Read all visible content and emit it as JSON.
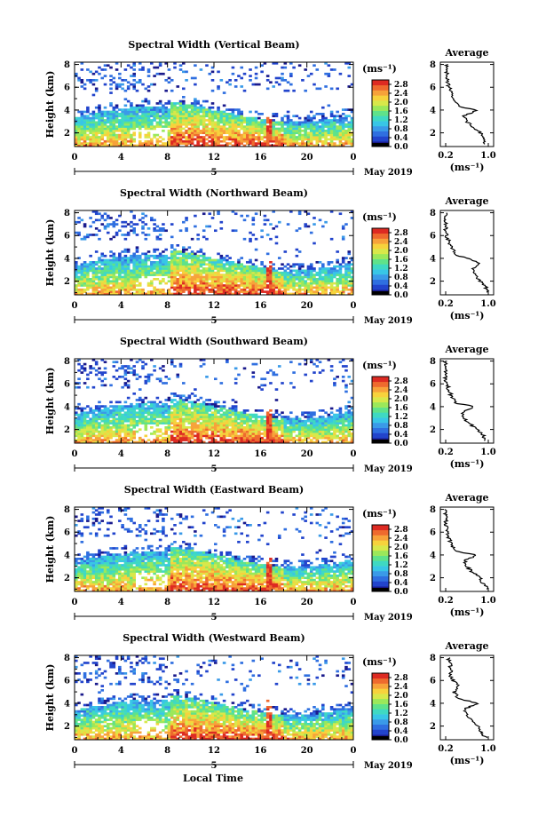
{
  "chart_data": [
    {
      "type": "heatmap",
      "title": "Spectral Width (Vertical Beam)",
      "ylabel": "Height (km)",
      "yticks": [
        "2",
        "4",
        "6",
        "8"
      ],
      "ylim": [
        0.8,
        8.2
      ],
      "xticks": [
        "0",
        "4",
        "8",
        "12",
        "16",
        "20",
        "0"
      ],
      "xlim": [
        0,
        24
      ],
      "date_tick": "5",
      "date_label": "May 2019",
      "colorbar_unit": "(ms⁻¹)",
      "colorbar_ticks": [
        "0.0",
        "0.4",
        "0.8",
        "1.2",
        "1.6",
        "2.0",
        "2.4",
        "2.8"
      ],
      "colorbar_range": [
        0.0,
        3.0
      ],
      "profile": {
        "title": "Average",
        "xlabel": "(ms⁻¹)",
        "xticks": [
          "0.2",
          "1.0"
        ],
        "xlim": [
          0.1,
          1.1
        ],
        "yticks": [
          "2",
          "4",
          "6",
          "8"
        ],
        "ylim": [
          0.8,
          8.2
        ],
        "points": [
          [
            0.95,
            1.0
          ],
          [
            0.9,
            1.5
          ],
          [
            0.85,
            2.0
          ],
          [
            0.72,
            2.5
          ],
          [
            0.6,
            3.0
          ],
          [
            0.55,
            3.5
          ],
          [
            0.8,
            4.0
          ],
          [
            0.45,
            4.3
          ],
          [
            0.35,
            5.0
          ],
          [
            0.3,
            5.6
          ],
          [
            0.25,
            6.2
          ],
          [
            0.22,
            7.0
          ],
          [
            0.22,
            8.0
          ]
        ]
      }
    },
    {
      "type": "heatmap",
      "title": "Spectral Width (Northward Beam)",
      "ylabel": "Height (km)",
      "yticks": [
        "2",
        "4",
        "6",
        "8"
      ],
      "ylim": [
        0.8,
        8.2
      ],
      "xticks": [
        "0",
        "4",
        "8",
        "12",
        "16",
        "20",
        "0"
      ],
      "xlim": [
        0,
        24
      ],
      "date_tick": "5",
      "date_label": "May 2019",
      "colorbar_unit": "(ms⁻¹)",
      "colorbar_ticks": [
        "0.0",
        "0.4",
        "0.8",
        "1.2",
        "1.6",
        "2.0",
        "2.4",
        "2.8"
      ],
      "colorbar_range": [
        0.0,
        3.0
      ],
      "profile": {
        "title": "Average",
        "xlabel": "(ms⁻¹)",
        "xticks": [
          "0.2",
          "1.0"
        ],
        "xlim": [
          0.1,
          1.1
        ],
        "yticks": [
          "2",
          "4",
          "6",
          "8"
        ],
        "ylim": [
          0.8,
          8.2
        ],
        "points": [
          [
            1.0,
            1.0
          ],
          [
            0.95,
            1.5
          ],
          [
            0.85,
            2.0
          ],
          [
            0.75,
            2.5
          ],
          [
            0.7,
            3.0
          ],
          [
            0.82,
            3.6
          ],
          [
            0.6,
            4.0
          ],
          [
            0.4,
            4.3
          ],
          [
            0.3,
            5.0
          ],
          [
            0.25,
            5.6
          ],
          [
            0.2,
            6.2
          ],
          [
            0.2,
            7.0
          ],
          [
            0.22,
            8.0
          ]
        ]
      }
    },
    {
      "type": "heatmap",
      "title": "Spectral Width (Southward Beam)",
      "ylabel": "Height (km)",
      "yticks": [
        "2",
        "4",
        "6",
        "8"
      ],
      "ylim": [
        0.8,
        8.2
      ],
      "xticks": [
        "0",
        "4",
        "8",
        "12",
        "16",
        "20",
        "0"
      ],
      "xlim": [
        0,
        24
      ],
      "date_tick": "5",
      "date_label": "May 2019",
      "colorbar_unit": "(ms⁻¹)",
      "colorbar_ticks": [
        "0.0",
        "0.4",
        "0.8",
        "1.2",
        "1.6",
        "2.0",
        "2.4",
        "2.8"
      ],
      "colorbar_range": [
        0.0,
        3.0
      ],
      "profile": {
        "title": "Average",
        "xlabel": "(ms⁻¹)",
        "xticks": [
          "0.2",
          "1.0"
        ],
        "xlim": [
          0.1,
          1.1
        ],
        "yticks": [
          "2",
          "4",
          "6",
          "8"
        ],
        "ylim": [
          0.8,
          8.2
        ],
        "points": [
          [
            0.95,
            1.0
          ],
          [
            0.9,
            1.5
          ],
          [
            0.8,
            2.0
          ],
          [
            0.65,
            2.5
          ],
          [
            0.55,
            3.0
          ],
          [
            0.5,
            3.5
          ],
          [
            0.75,
            4.0
          ],
          [
            0.4,
            4.3
          ],
          [
            0.3,
            5.0
          ],
          [
            0.25,
            5.6
          ],
          [
            0.2,
            6.2
          ],
          [
            0.2,
            7.0
          ],
          [
            0.2,
            8.0
          ]
        ]
      }
    },
    {
      "type": "heatmap",
      "title": "Spectral Width (Eastward Beam)",
      "ylabel": "Height (km)",
      "yticks": [
        "2",
        "4",
        "6",
        "8"
      ],
      "ylim": [
        0.8,
        8.2
      ],
      "xticks": [
        "0",
        "4",
        "8",
        "12",
        "16",
        "20",
        "0"
      ],
      "xlim": [
        0,
        24
      ],
      "date_tick": "5",
      "date_label": "May 2019",
      "colorbar_unit": "(ms⁻¹)",
      "colorbar_ticks": [
        "0.0",
        "0.4",
        "0.8",
        "1.2",
        "1.6",
        "2.0",
        "2.4",
        "2.8"
      ],
      "colorbar_range": [
        0.0,
        3.0
      ],
      "profile": {
        "title": "Average",
        "xlabel": "(ms⁻¹)",
        "xticks": [
          "0.2",
          "1.0"
        ],
        "xlim": [
          0.1,
          1.1
        ],
        "yticks": [
          "2",
          "4",
          "6",
          "8"
        ],
        "ylim": [
          0.8,
          8.2
        ],
        "points": [
          [
            1.0,
            1.0
          ],
          [
            0.9,
            1.5
          ],
          [
            0.85,
            2.0
          ],
          [
            0.7,
            2.5
          ],
          [
            0.6,
            3.0
          ],
          [
            0.55,
            3.5
          ],
          [
            0.8,
            4.0
          ],
          [
            0.4,
            4.3
          ],
          [
            0.3,
            5.0
          ],
          [
            0.25,
            5.6
          ],
          [
            0.22,
            6.2
          ],
          [
            0.2,
            7.0
          ],
          [
            0.2,
            8.0
          ]
        ]
      }
    },
    {
      "type": "heatmap",
      "title": "Spectral Width (Westward Beam)",
      "ylabel": "Height (km)",
      "yticks": [
        "2",
        "4",
        "6",
        "8"
      ],
      "ylim": [
        0.8,
        8.2
      ],
      "xticks": [
        "0",
        "4",
        "8",
        "12",
        "16",
        "20",
        "0"
      ],
      "xlim": [
        0,
        24
      ],
      "date_tick": "5",
      "date_label": "May 2019",
      "colorbar_unit": "(ms⁻¹)",
      "colorbar_ticks": [
        "0.0",
        "0.4",
        "0.8",
        "1.2",
        "1.6",
        "2.0",
        "2.4",
        "2.8"
      ],
      "colorbar_range": [
        0.0,
        3.0
      ],
      "profile": {
        "title": "Average",
        "xlabel": "(ms⁻¹)",
        "xticks": [
          "0.2",
          "1.0"
        ],
        "xlim": [
          0.1,
          1.1
        ],
        "yticks": [
          "2",
          "4",
          "6",
          "8"
        ],
        "ylim": [
          0.8,
          8.2
        ],
        "points": [
          [
            0.95,
            1.0
          ],
          [
            0.85,
            1.5
          ],
          [
            0.8,
            2.0
          ],
          [
            0.7,
            2.5
          ],
          [
            0.6,
            3.0
          ],
          [
            0.55,
            3.5
          ],
          [
            0.8,
            4.0
          ],
          [
            0.45,
            4.4
          ],
          [
            0.35,
            5.0
          ],
          [
            0.45,
            5.6
          ],
          [
            0.3,
            6.2
          ],
          [
            0.3,
            7.0
          ],
          [
            0.25,
            8.0
          ]
        ]
      }
    }
  ],
  "xlabel": "Local Time",
  "palette": [
    "#1a1a8c",
    "#2244cc",
    "#2f6fe0",
    "#3a9ae8",
    "#38c6e6",
    "#3fd9c2",
    "#5fe28a",
    "#9be85a",
    "#d8e84a",
    "#f7d23c",
    "#f7a23a",
    "#ee6a2e",
    "#dd2a22"
  ]
}
